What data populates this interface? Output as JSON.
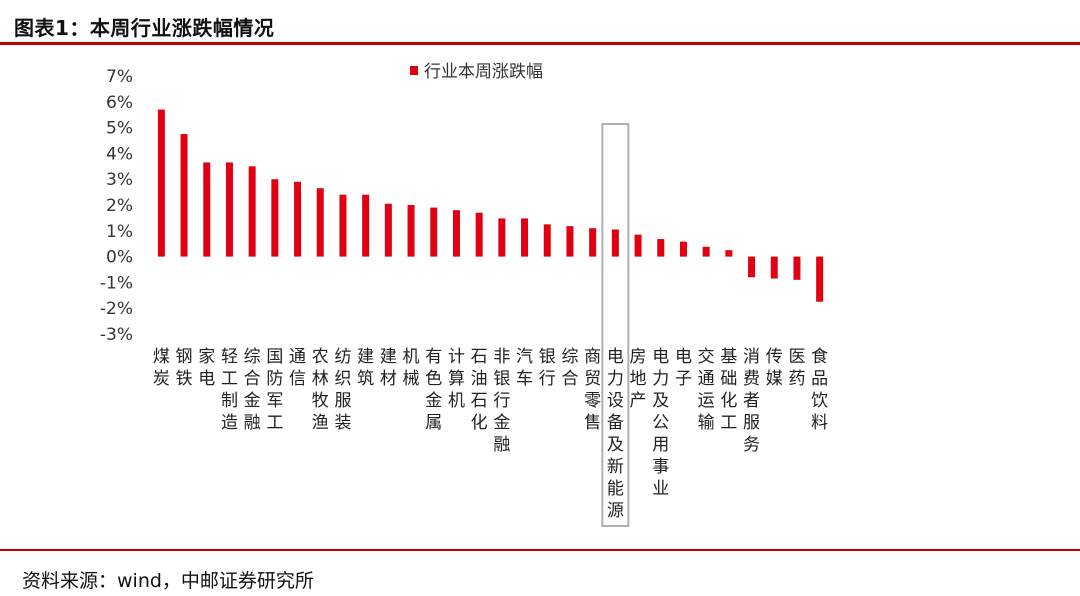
{
  "header": {
    "title": "图表1：本周行业涨跌幅情况"
  },
  "footer": {
    "source": "资料来源：wind，中邮证券研究所"
  },
  "colors": {
    "bar": "#E00012",
    "rule": "#C00000",
    "highlight_box": "#B0B0B0"
  },
  "chart_data": {
    "type": "bar",
    "categories": [
      "煤炭",
      "钢铁",
      "家电",
      "轻工制造",
      "综合金融",
      "国防军工",
      "通信",
      "农林牧渔",
      "纺织服装",
      "建筑",
      "建材",
      "机械",
      "有色金属",
      "计算机",
      "石油石化",
      "非银行金融",
      "汽车",
      "银行",
      "综合",
      "商贸零售",
      "电力设备及新能源",
      "房地产",
      "电力及公用事业",
      "电子",
      "交通运输",
      "基础化工",
      "消费者服务",
      "传媒",
      "医药",
      "食品饮料"
    ],
    "series": [
      {
        "name": "行业本周涨跌幅",
        "values": [
          5.7,
          4.75,
          3.65,
          3.65,
          3.5,
          3.0,
          2.9,
          2.65,
          2.4,
          2.4,
          2.05,
          2.0,
          1.9,
          1.8,
          1.7,
          1.48,
          1.48,
          1.25,
          1.18,
          1.1,
          1.05,
          0.85,
          0.68,
          0.58,
          0.38,
          0.25,
          -0.8,
          -0.85,
          -0.9,
          -1.75
        ]
      }
    ],
    "ylim": [
      -3,
      7
    ],
    "yticks": [
      "7%",
      "6%",
      "5%",
      "4%",
      "3%",
      "2%",
      "1%",
      "0%",
      "-1%",
      "-2%",
      "-3%"
    ],
    "ytick_values": [
      7,
      6,
      5,
      4,
      3,
      2,
      1,
      0,
      -1,
      -2,
      -3
    ],
    "legend": "top-center",
    "grid": false,
    "highlight_category": "电力设备及新能源"
  }
}
